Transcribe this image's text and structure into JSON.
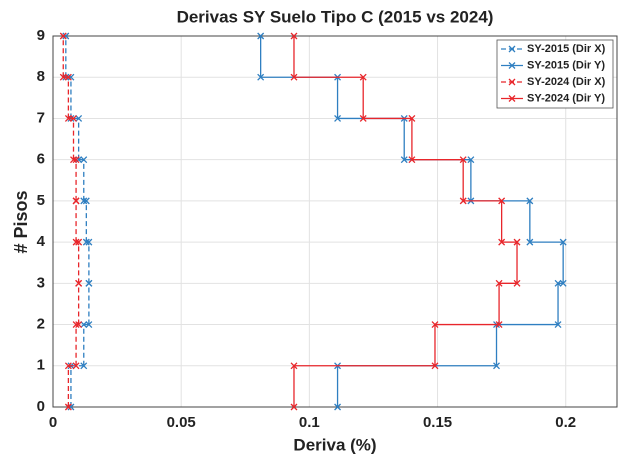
{
  "chart_data": {
    "type": "stairs",
    "title": "Derivas SY Suelo Tipo C (2015 vs 2024)",
    "x_label": "Deriva (%)",
    "y_label": "# Pisos",
    "stories": [
      1,
      2,
      3,
      4,
      5,
      6,
      7,
      8,
      9
    ],
    "series": [
      {
        "name": "SY-2015 (Dir X)",
        "color": "#2f7fc1",
        "linestyle": "--",
        "values": [
          0.007,
          0.012,
          0.014,
          0.014,
          0.013,
          0.012,
          0.01,
          0.007,
          0.005
        ]
      },
      {
        "name": "SY-2015 (Dir Y)",
        "color": "#2f7fc1",
        "linestyle": "-",
        "values": [
          0.111,
          0.173,
          0.197,
          0.199,
          0.186,
          0.163,
          0.137,
          0.111,
          0.081
        ]
      },
      {
        "name": "SY-2024 (Dir X)",
        "color": "#e8262b",
        "linestyle": "--",
        "values": [
          0.006,
          0.009,
          0.01,
          0.01,
          0.009,
          0.009,
          0.008,
          0.006,
          0.004
        ]
      },
      {
        "name": "SY-2024 (Dir Y)",
        "color": "#e8262b",
        "linestyle": "-",
        "values": [
          0.094,
          0.149,
          0.174,
          0.181,
          0.175,
          0.16,
          0.14,
          0.121,
          0.094
        ]
      }
    ],
    "xlim": [
      0,
      0.22
    ],
    "xticks": [
      0,
      0.05,
      0.1,
      0.15,
      0.2
    ],
    "ylim": [
      0,
      9
    ],
    "yticks": [
      0,
      1,
      2,
      3,
      4,
      5,
      6,
      7,
      8,
      9
    ],
    "grid": true,
    "legend": "upper right",
    "marker": "x"
  }
}
